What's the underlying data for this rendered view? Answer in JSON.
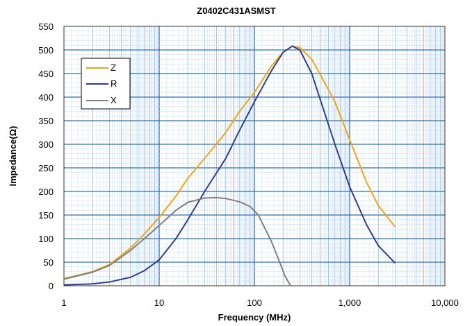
{
  "chart_data": {
    "type": "line",
    "title": "Z0402C431ASMST",
    "xlabel": "Frequency (MHz)",
    "ylabel": "Impedance(Ω)",
    "xscale": "log",
    "xlim": [
      1,
      10000
    ],
    "ylim": [
      0,
      550
    ],
    "x_tick_labels": [
      "1",
      "10",
      "100",
      "1,000",
      "10,000"
    ],
    "y_tick_labels": [
      "0",
      "50",
      "100",
      "150",
      "200",
      "250",
      "300",
      "350",
      "400",
      "450",
      "500",
      "550"
    ],
    "grid": true,
    "legend_position": "upper-left",
    "series": [
      {
        "name": "Z",
        "color": "#f0a513",
        "points": [
          [
            1,
            15
          ],
          [
            2,
            30
          ],
          [
            3,
            45
          ],
          [
            5,
            80
          ],
          [
            7,
            110
          ],
          [
            10,
            145
          ],
          [
            15,
            190
          ],
          [
            20,
            228
          ],
          [
            30,
            270
          ],
          [
            50,
            325
          ],
          [
            70,
            370
          ],
          [
            100,
            410
          ],
          [
            150,
            465
          ],
          [
            200,
            495
          ],
          [
            250,
            508
          ],
          [
            300,
            505
          ],
          [
            400,
            480
          ],
          [
            500,
            445
          ],
          [
            700,
            390
          ],
          [
            1000,
            310
          ],
          [
            1500,
            220
          ],
          [
            2000,
            170
          ],
          [
            3000,
            125
          ]
        ]
      },
      {
        "name": "R",
        "color": "#2e3d8f",
        "points": [
          [
            1,
            2
          ],
          [
            2,
            4
          ],
          [
            3,
            8
          ],
          [
            5,
            18
          ],
          [
            7,
            32
          ],
          [
            10,
            55
          ],
          [
            15,
            100
          ],
          [
            20,
            140
          ],
          [
            30,
            200
          ],
          [
            50,
            270
          ],
          [
            70,
            330
          ],
          [
            100,
            390
          ],
          [
            150,
            455
          ],
          [
            200,
            495
          ],
          [
            250,
            508
          ],
          [
            300,
            500
          ],
          [
            400,
            450
          ],
          [
            500,
            390
          ],
          [
            700,
            300
          ],
          [
            1000,
            210
          ],
          [
            1500,
            130
          ],
          [
            2000,
            85
          ],
          [
            3000,
            48
          ]
        ]
      },
      {
        "name": "X",
        "color": "#808080",
        "points": [
          [
            1,
            14
          ],
          [
            2,
            29
          ],
          [
            3,
            43
          ],
          [
            5,
            75
          ],
          [
            7,
            100
          ],
          [
            10,
            128
          ],
          [
            15,
            160
          ],
          [
            20,
            177
          ],
          [
            30,
            186
          ],
          [
            40,
            187
          ],
          [
            50,
            185
          ],
          [
            70,
            178
          ],
          [
            90,
            168
          ],
          [
            110,
            150
          ],
          [
            130,
            120
          ],
          [
            150,
            95
          ],
          [
            180,
            55
          ],
          [
            210,
            20
          ],
          [
            240,
            0
          ]
        ]
      }
    ]
  }
}
